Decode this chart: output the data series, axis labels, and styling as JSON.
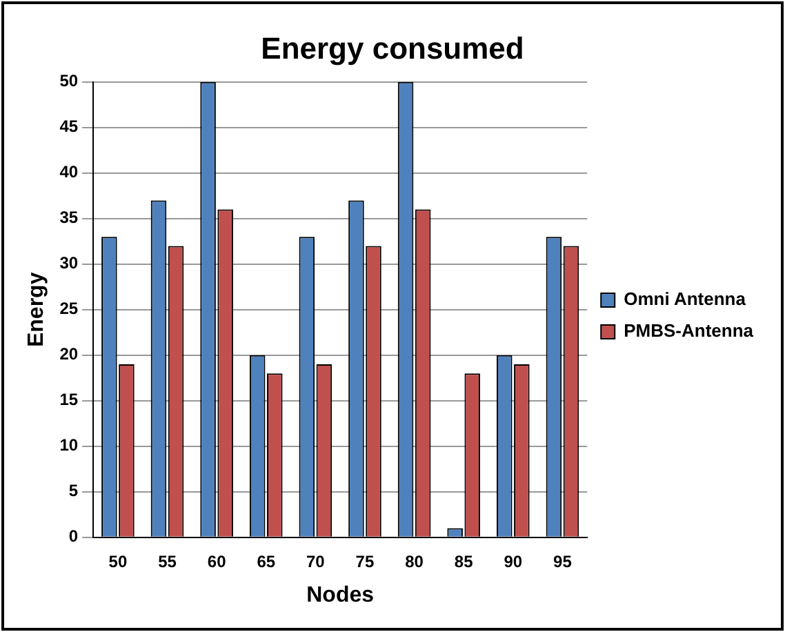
{
  "chart_data": {
    "type": "bar",
    "title": "Energy consumed",
    "xlabel": "Nodes",
    "ylabel": "Energy",
    "categories": [
      "50",
      "55",
      "60",
      "65",
      "70",
      "75",
      "80",
      "85",
      "90",
      "95"
    ],
    "series": [
      {
        "name": "Omni Antenna",
        "color": "#4f81bd",
        "values": [
          33,
          37,
          50,
          20,
          33,
          37,
          50,
          1,
          20,
          33
        ]
      },
      {
        "name": "PMBS-Antenna",
        "color": "#c0504d",
        "values": [
          19,
          32,
          36,
          18,
          19,
          32,
          36,
          18,
          19,
          32
        ]
      }
    ],
    "ylim": [
      0,
      50
    ],
    "yticks": [
      0,
      5,
      10,
      15,
      20,
      25,
      30,
      35,
      40,
      45,
      50
    ],
    "grid": "y",
    "legend": "right"
  }
}
